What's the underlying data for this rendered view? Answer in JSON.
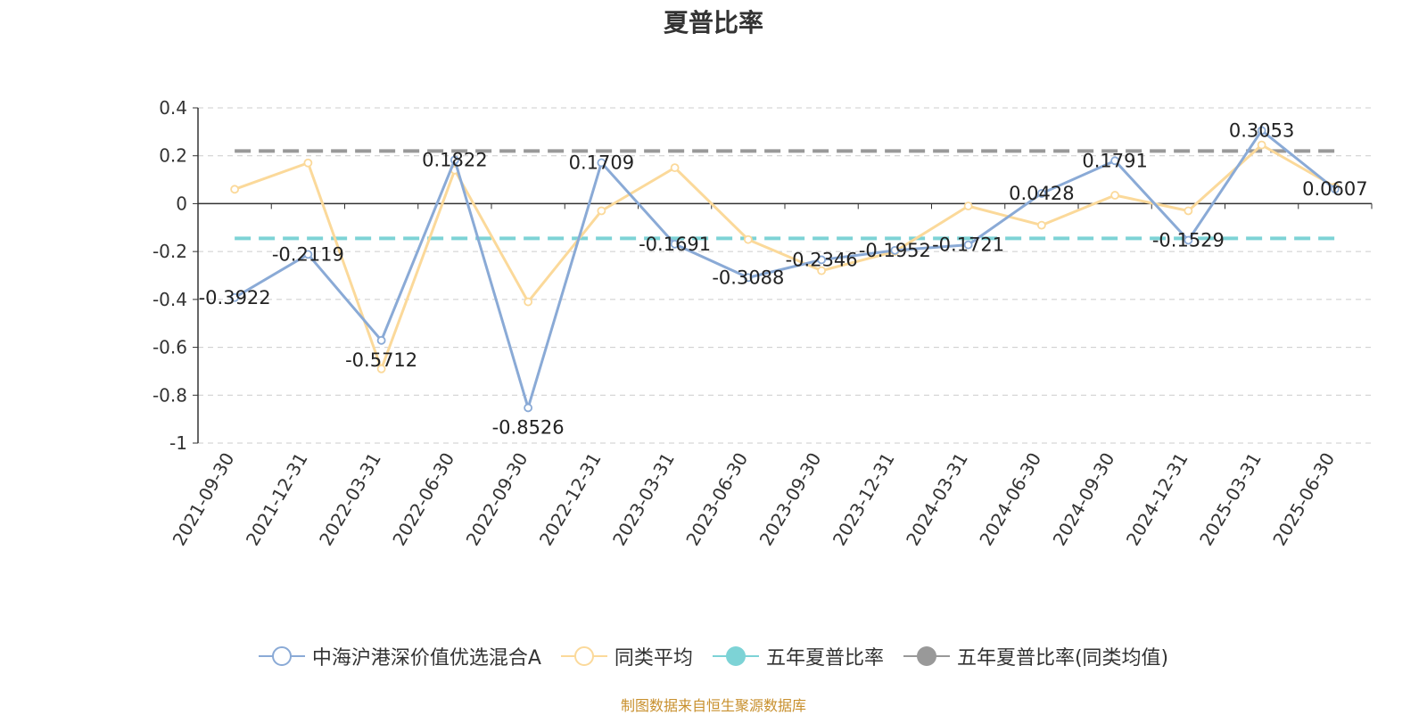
{
  "title": "夏普比率",
  "source_note": "制图数据来自恒生聚源数据库",
  "chart_data": {
    "type": "line",
    "title": "夏普比率",
    "categories": [
      "2021-09-30",
      "2021-12-31",
      "2022-03-31",
      "2022-06-30",
      "2022-09-30",
      "2022-12-31",
      "2023-03-31",
      "2023-06-30",
      "2023-09-30",
      "2023-12-31",
      "2024-03-31",
      "2024-06-30",
      "2024-09-30",
      "2024-12-31",
      "2025-03-31",
      "2025-06-30"
    ],
    "ylim": [
      -1,
      0.4
    ],
    "yticks": [
      0.4,
      0.2,
      0,
      -0.2,
      -0.4,
      -0.6,
      -0.8,
      -1
    ],
    "ytick_labels": [
      "0.4",
      "0.2",
      "0",
      "-0.2",
      "-0.4",
      "-0.6",
      "-0.8",
      "-1"
    ],
    "grid": true,
    "legend_position": "bottom",
    "series": [
      {
        "name": "中海沪港深价值优选混合A",
        "color": "#8aaad6",
        "marker": "hollow-circle",
        "labeled": true,
        "values": [
          -0.3922,
          -0.2119,
          -0.5712,
          0.1822,
          -0.8526,
          0.1709,
          -0.1691,
          -0.3088,
          -0.2346,
          -0.1952,
          -0.1721,
          0.0428,
          0.1791,
          -0.1529,
          0.3053,
          0.0607
        ],
        "labels": [
          "-0.3922",
          "-0.2119",
          "-0.5712",
          "0.1822",
          "-0.8526",
          "0.1709",
          "-0.1691",
          "-0.3088",
          "-0.2346",
          "-0.1952",
          "-0.1721",
          "0.0428",
          "0.1791",
          "-0.1529",
          "0.3053",
          "0.0607"
        ]
      },
      {
        "name": "同类平均",
        "color": "#fbd99a",
        "marker": "hollow-circle",
        "labeled": false,
        "values": [
          0.06,
          0.17,
          -0.69,
          0.14,
          -0.41,
          -0.03,
          0.15,
          -0.15,
          -0.28,
          -0.2,
          -0.01,
          -0.09,
          0.035,
          -0.03,
          0.245,
          0.07
        ]
      },
      {
        "name": "五年夏普比率",
        "color": "#7dd3d6",
        "marker": "filled-circle",
        "style": "dashed",
        "constant": -0.145
      },
      {
        "name": "五年夏普比率(同类均值)",
        "color": "#999999",
        "marker": "filled-circle",
        "style": "dashed",
        "constant": 0.22
      }
    ]
  }
}
